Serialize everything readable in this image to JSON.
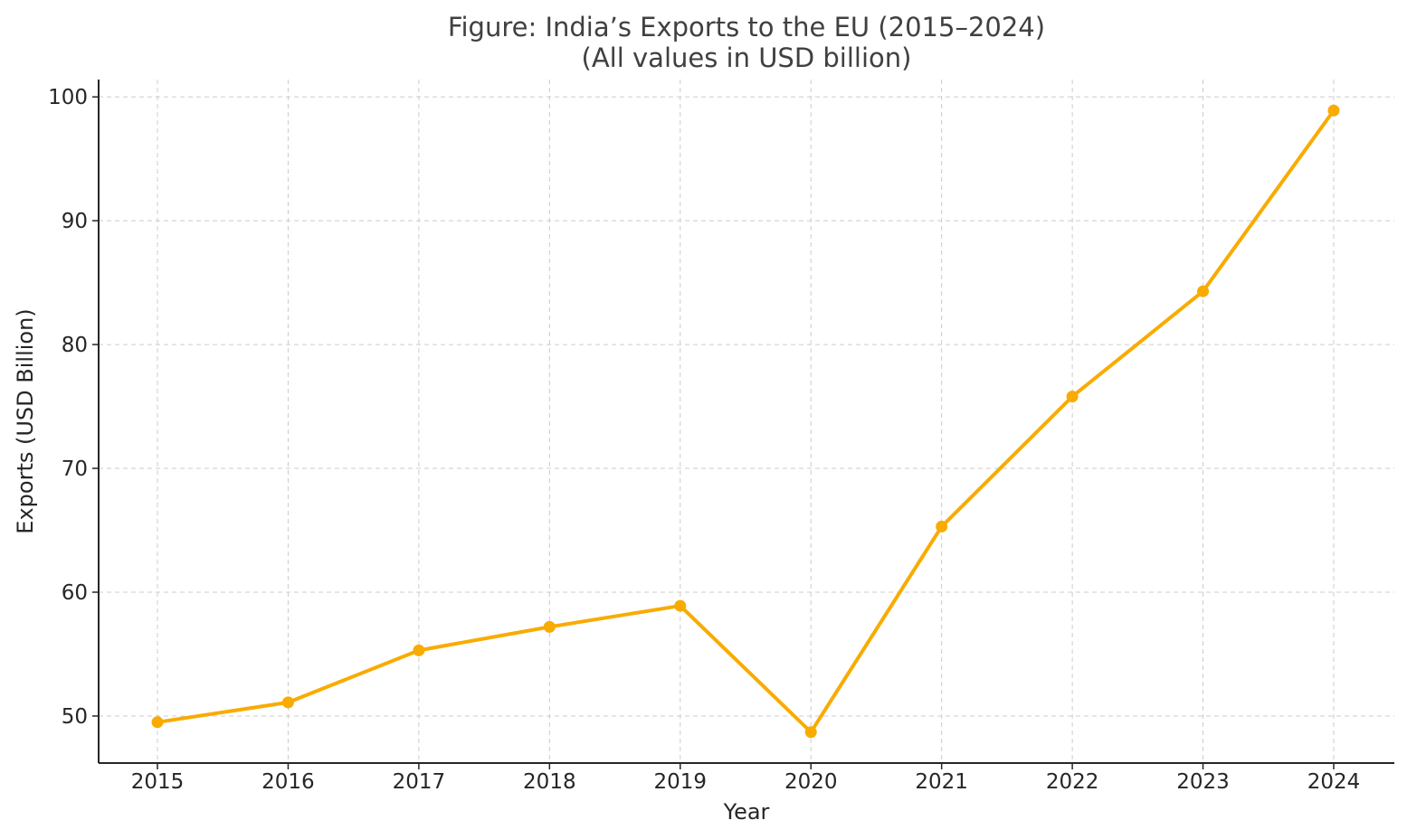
{
  "chart_data": {
    "type": "line",
    "title": "Figure: India’s Exports to the EU (2015–2024)",
    "subtitle": "(All values in USD billion)",
    "xlabel": "Year",
    "ylabel": "Exports (USD Billion)",
    "categories": [
      "2015",
      "2016",
      "2017",
      "2018",
      "2019",
      "2020",
      "2021",
      "2022",
      "2023",
      "2024"
    ],
    "series": [
      {
        "values": [
          49.5,
          51.1,
          55.3,
          57.2,
          58.9,
          48.7,
          65.3,
          75.8,
          84.3,
          98.9
        ],
        "color": "#f9ab00"
      }
    ],
    "yticks": [
      50,
      60,
      70,
      80,
      90,
      100
    ],
    "ylim": [
      46.2,
      101.4
    ],
    "grid": true,
    "legend": "none"
  }
}
